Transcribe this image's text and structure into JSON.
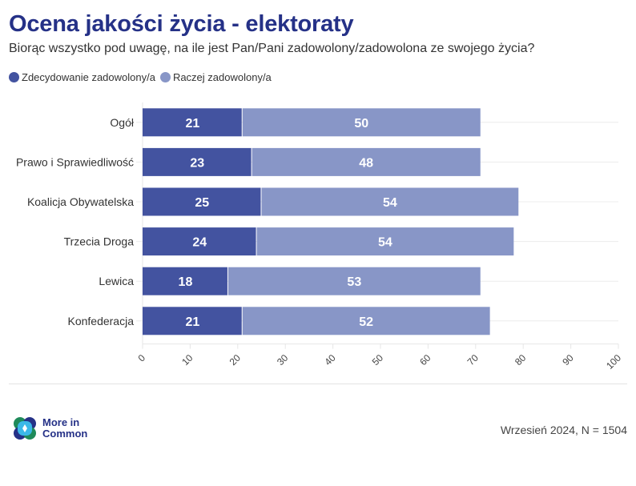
{
  "header": {
    "title": "Ocena jakości życia - elektoraty",
    "subtitle": "Biorąc wszystko pod uwagę, na ile jest Pan/Pani zadowolony/zadowolona ze swojego życia?"
  },
  "colors": {
    "series1": "#4353a0",
    "series2": "#8896c7",
    "title": "#253187"
  },
  "chart_data": {
    "type": "bar",
    "orientation": "horizontal",
    "stacked": true,
    "title": "Ocena jakości życia - elektoraty",
    "subtitle": "Biorąc wszystko pod uwagę, na ile jest Pan/Pani zadowolony/zadowolona ze swojego życia?",
    "categories": [
      "Ogół",
      "Prawo i Sprawiedliwość",
      "Koalicja Obywatelska",
      "Trzecia Droga",
      "Lewica",
      "Konfederacja"
    ],
    "series": [
      {
        "name": "Zdecydowanie zadowolony/a",
        "values": [
          21,
          23,
          25,
          24,
          18,
          21
        ]
      },
      {
        "name": "Raczej zadowolony/a",
        "values": [
          50,
          48,
          54,
          54,
          53,
          52
        ]
      }
    ],
    "xlabel": "",
    "ylabel": "",
    "xlim": [
      0,
      100
    ],
    "xticks": [
      "0",
      "10",
      "20",
      "30",
      "40",
      "50",
      "60",
      "70",
      "80",
      "90",
      "100"
    ],
    "grid": true,
    "legend": "top-left"
  },
  "footer": {
    "logo_line1": "More in",
    "logo_line2": "Common",
    "note": "Wrzesień 2024, N = 1504"
  }
}
